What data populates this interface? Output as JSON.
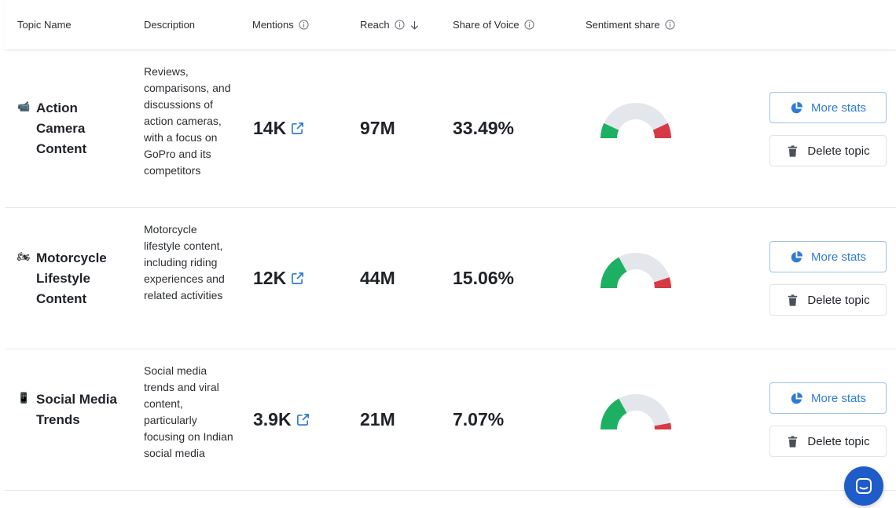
{
  "columns": {
    "topic_name": "Topic Name",
    "description": "Description",
    "mentions": "Mentions",
    "reach": "Reach",
    "share_of_voice": "Share of Voice",
    "sentiment_share": "Sentiment share"
  },
  "rows": [
    {
      "emoji": "📹",
      "name": "Action Camera Content",
      "description": "Reviews, comparisons, and discussions of action cameras, with a focus on GoPro and its competitors",
      "mentions": "14K",
      "reach": "97M",
      "share_of_voice": "33.49%",
      "sentiment": {
        "positive": 0.14,
        "negative": 0.14
      }
    },
    {
      "emoji": "🏍",
      "name": "Motorcycle Lifestyle Content",
      "description": "Motorcycle lifestyle content, including riding experiences and related activities",
      "mentions": "12K",
      "reach": "44M",
      "share_of_voice": "15.06%",
      "sentiment": {
        "positive": 0.34,
        "negative": 0.1
      }
    },
    {
      "emoji": "📱",
      "name": "Social Media Trends",
      "description": "Social media trends and viral content, particularly focusing on Indian social media",
      "mentions": "3.9K",
      "reach": "21M",
      "share_of_voice": "7.07%",
      "sentiment": {
        "positive": 0.34,
        "negative": 0.06
      }
    }
  ],
  "actions": {
    "more_stats": "More stats",
    "delete_topic": "Delete topic"
  },
  "colors": {
    "positive": "#1db063",
    "negative": "#d63a45",
    "neutral": "#e3e6ea",
    "accent": "#2f7bd6",
    "chat_fab": "#1d5cc9"
  },
  "icons": {
    "info": "info-icon",
    "sort": "arrow-down-icon",
    "external": "external-link-icon",
    "stats": "pie-chart-icon",
    "delete": "trash-icon",
    "chat": "chat-icon"
  }
}
